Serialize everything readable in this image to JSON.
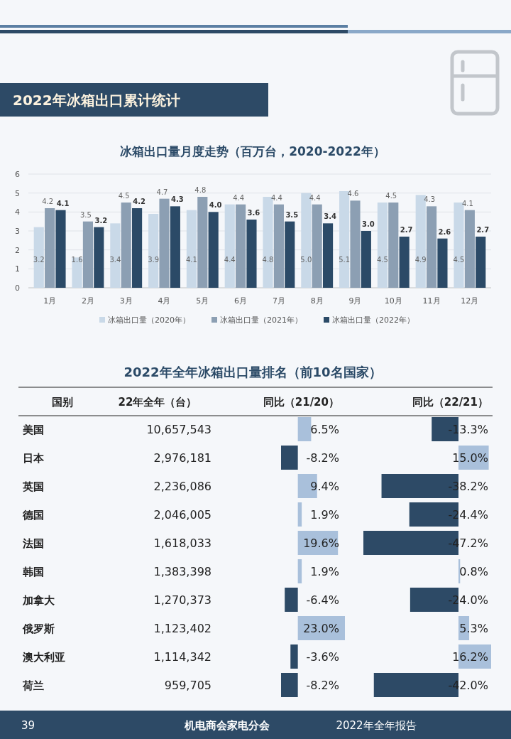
{
  "chart_data": [
    {
      "type": "bar",
      "subtitle": "2022年冰箱出口累计统计",
      "title": "冰箱出口量月度走势（百万台，2020-2022年）",
      "categories": [
        "1月",
        "2月",
        "3月",
        "4月",
        "5月",
        "6月",
        "7月",
        "8月",
        "9月",
        "10月",
        "11月",
        "12月"
      ],
      "series": [
        {
          "name": "冰箱出口量（2020年）",
          "color": "#c9d9e8",
          "values": [
            3.2,
            1.6,
            3.4,
            3.9,
            4.1,
            4.4,
            4.8,
            5.0,
            5.1,
            4.5,
            4.9,
            4.5
          ],
          "value_labels": [
            "3.2",
            "1.6",
            "3.4",
            "3.9",
            "4.1",
            "4.4",
            "4.8",
            "5.0",
            "5.1",
            "4.5",
            "4.9",
            "4.5"
          ]
        },
        {
          "name": "冰箱出口量（2021年）",
          "color": "#8c9fb3",
          "values": [
            4.2,
            3.5,
            4.5,
            4.7,
            4.8,
            4.4,
            4.4,
            4.4,
            4.6,
            4.5,
            4.3,
            4.1
          ],
          "value_labels": [
            "4.2",
            "3.5",
            "4.5",
            "4.7",
            "4.8",
            "4.4",
            "4.4",
            "4.4",
            "4.6",
            "4.5",
            "4.3",
            "4.1"
          ]
        },
        {
          "name": "冰箱出口量（2022年）",
          "color": "#2b4a67",
          "values": [
            4.1,
            3.2,
            4.2,
            4.3,
            4.0,
            3.6,
            3.5,
            3.4,
            3.0,
            2.7,
            2.6,
            2.7
          ],
          "value_labels": [
            "4.1",
            "3.2",
            "4.2",
            "4.3",
            "4.0",
            "3.6",
            "3.5",
            "3.4",
            "3.0",
            "2.7",
            "2.6",
            "2.7"
          ]
        }
      ],
      "ylim": [
        0,
        6
      ],
      "yticks": [
        0,
        1,
        2,
        3,
        4,
        5,
        6
      ],
      "grid": "y",
      "legend": "bottom"
    },
    {
      "type": "bar",
      "orientation": "horizontal",
      "title": "2022年全年冰箱出口量排名（前10名国家）",
      "ylabel": "国别",
      "categories": [
        "美国",
        "日本",
        "英国",
        "德国",
        "法国",
        "韩国",
        "加拿大",
        "俄罗斯",
        "澳大利亚",
        "荷兰"
      ],
      "series": [
        {
          "name": "同比（21/20）",
          "colors": [
            "#a9c0db",
            "#2d4a66",
            "#a9c0db",
            "#a9c0db",
            "#a9c0db",
            "#a9c0db",
            "#2d4a66",
            "#a9c0db",
            "#2d4a66",
            "#2d4a66"
          ],
          "values": [
            6.5,
            -8.2,
            9.4,
            1.9,
            19.6,
            1.9,
            -6.4,
            23.0,
            -3.6,
            -8.2
          ],
          "value_labels": [
            "6.5%",
            "-8.2%",
            "9.4%",
            "1.9%",
            "19.6%",
            "1.9%",
            "-6.4%",
            "23.0%",
            "-3.6%",
            "-8.2%"
          ]
        }
      ],
      "tick_labels": "y",
      "annotations": [
        "22年全年（台）",
        "10,657,543",
        "2,976,181",
        "2,236,086",
        "2,046,005",
        "1,618,033",
        "1,383,398",
        "1,270,373",
        "1,123,402",
        "1,114,342",
        "959,705"
      ]
    },
    {
      "type": "bar",
      "orientation": "horizontal",
      "categories": [
        null,
        null,
        null,
        null,
        null,
        null,
        null,
        null,
        null,
        null
      ],
      "series": [
        {
          "name": "同比（22/21）",
          "colors": [
            "#2d4a66",
            "#a9c0db",
            "#2d4a66",
            "#2d4a66",
            "#2d4a66",
            "#a9c0db",
            "#2d4a66",
            "#a9c0db",
            "#a9c0db",
            "#2d4a66"
          ],
          "values": [
            -13.3,
            15.0,
            -38.2,
            -24.4,
            -47.2,
            0.8,
            -24.0,
            5.3,
            16.2,
            -42.0
          ],
          "value_labels": [
            "-13.3%",
            "15.0%",
            "-38.2%",
            "-24.4%",
            "-47.2%",
            "0.8%",
            "-24.0%",
            "5.3%",
            "16.2%",
            "-42.0%"
          ]
        }
      ],
      "tick_labels": false,
      "annotations": [
        "39",
        "机电商会家电分会",
        "2022年全年报告"
      ]
    }
  ]
}
